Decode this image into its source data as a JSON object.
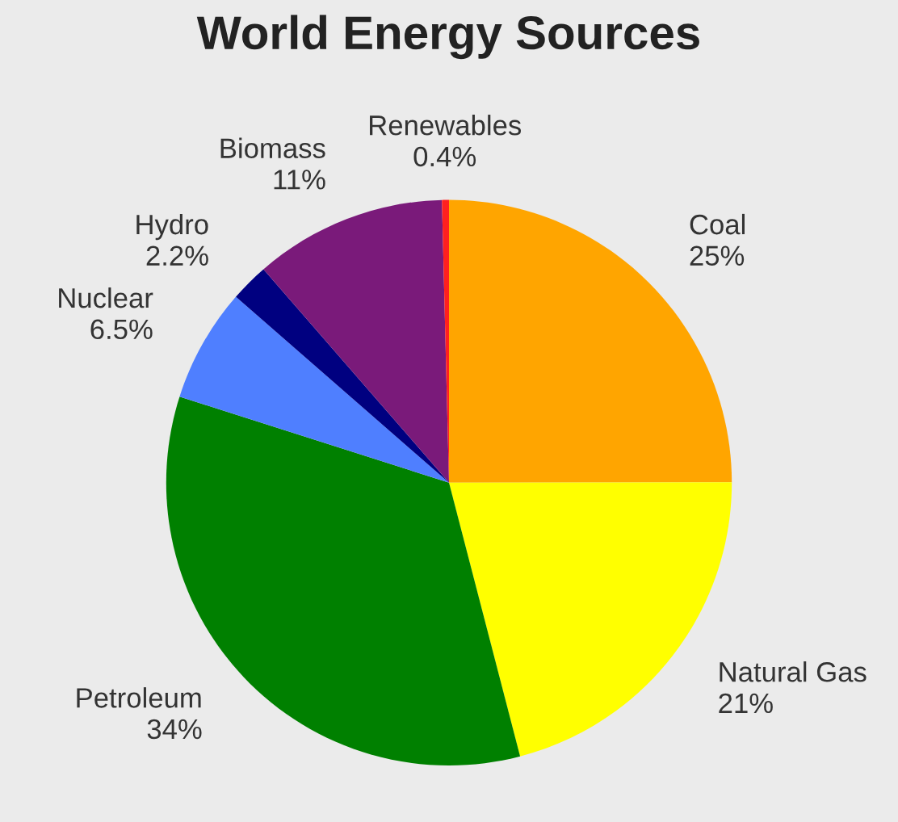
{
  "chart_data": {
    "type": "pie",
    "title": "World Energy Sources",
    "categories": [
      "Coal",
      "Natural Gas",
      "Petroleum",
      "Nuclear",
      "Hydro",
      "Biomass",
      "Renewables"
    ],
    "values": [
      25,
      21,
      34,
      6.5,
      2.2,
      11,
      0.4
    ],
    "value_labels": [
      "25%",
      "21%",
      "34%",
      "6.5%",
      "2.2%",
      "11%",
      "0.4%"
    ],
    "colors": [
      "#ffa500",
      "#ffff00",
      "#008000",
      "#4f7fff",
      "#000080",
      "#7a1a7a",
      "#ff2020"
    ],
    "legend": false
  }
}
